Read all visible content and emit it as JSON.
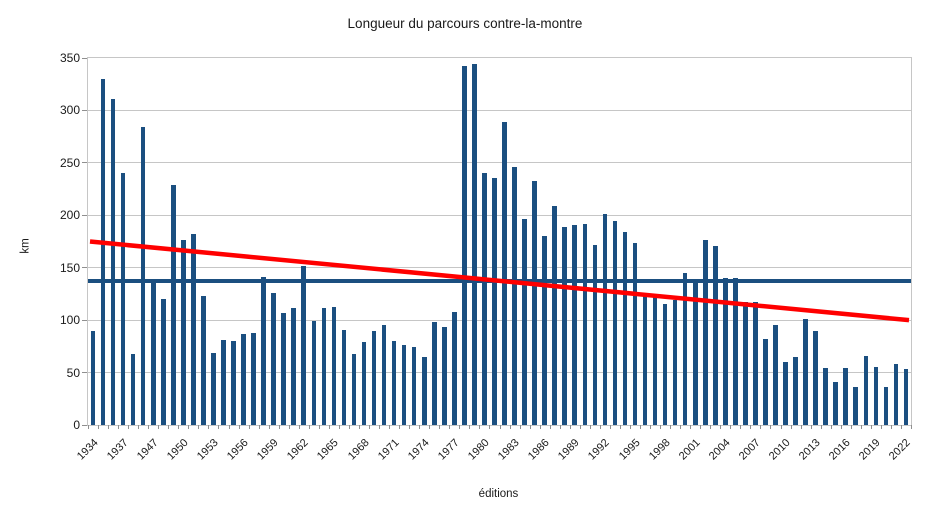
{
  "title": "Longueur du parcours contre-la-montre",
  "chart_data": {
    "type": "bar",
    "title": "Longueur du parcours contre-la-montre",
    "xlabel": "éditions",
    "ylabel": "km",
    "ylim": [
      0,
      350
    ],
    "ytick_step": 50,
    "grid": true,
    "legend": "none",
    "xlabel_every": 3,
    "categories": [
      "1934",
      "1935",
      "1936",
      "1937",
      "1938",
      "1939",
      "1947",
      "1948",
      "1949",
      "1950",
      "1951",
      "1952",
      "1953",
      "1954",
      "1955",
      "1956",
      "1957",
      "1958",
      "1959",
      "1960",
      "1961",
      "1962",
      "1963",
      "1964",
      "1965",
      "1966",
      "1967",
      "1968",
      "1969",
      "1970",
      "1971",
      "1972",
      "1973",
      "1974",
      "1975",
      "1976",
      "1977",
      "1978",
      "1979",
      "1980",
      "1981",
      "1982",
      "1983",
      "1984",
      "1985",
      "1986",
      "1987",
      "1988",
      "1989",
      "1990",
      "1991",
      "1992",
      "1993",
      "1994",
      "1995",
      "1996",
      "1997",
      "1998",
      "1999",
      "2000",
      "2001",
      "2002",
      "2003",
      "2004",
      "2005",
      "2006",
      "2007",
      "2008",
      "2009",
      "2010",
      "2011",
      "2012",
      "2013",
      "2014",
      "2015",
      "2016",
      "2017",
      "2018",
      "2019",
      "2020",
      "2021",
      "2022"
    ],
    "values": [
      90,
      330,
      311,
      240,
      68,
      284,
      139,
      120,
      229,
      176,
      182,
      123,
      69,
      81,
      80,
      87,
      88,
      141,
      126,
      107,
      112,
      152,
      99,
      112,
      113,
      91,
      68,
      79,
      90,
      95,
      80,
      76,
      74,
      65,
      98,
      93,
      108,
      342,
      344,
      240,
      236,
      289,
      246,
      196,
      233,
      180,
      209,
      189,
      191,
      192,
      172,
      201,
      195,
      184,
      174,
      125,
      123,
      115,
      119,
      145,
      138,
      176,
      171,
      140,
      140,
      117,
      117,
      82,
      95,
      60,
      65,
      101,
      90,
      54,
      41,
      54,
      36,
      66,
      55,
      36,
      58,
      53
    ],
    "average_line": {
      "value": 137.3
    },
    "trend_line": {
      "start_value": 175,
      "end_value": 100
    },
    "colors": {
      "bar": "#1b4f80",
      "average_line": "#1b4f80",
      "trend_line": "#ff0000",
      "grid": "#c6c6c6",
      "text": "#1a1a1a"
    }
  }
}
